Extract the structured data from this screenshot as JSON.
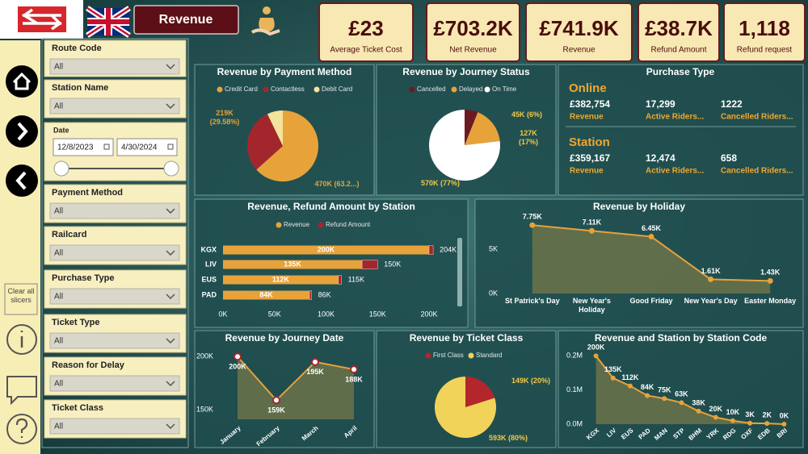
{
  "header": {
    "page_button": "Revenue"
  },
  "kpis": [
    {
      "value": "£23",
      "label": "Average Ticket Cost"
    },
    {
      "value": "£703.2K",
      "label": "Net Revenue"
    },
    {
      "value": "£741.9K",
      "label": "Revenue"
    },
    {
      "value": "£38.7K",
      "label": "Refund Amount"
    },
    {
      "value": "1,118",
      "label": "Refund request"
    }
  ],
  "sidebar": {
    "clear_button": "Clear all slicers"
  },
  "slicers": [
    {
      "label": "Route Code",
      "value": "All"
    },
    {
      "label": "Station Name",
      "value": "All"
    },
    {
      "label": "Date",
      "start": "12/8/2023",
      "end": "4/30/2024"
    },
    {
      "label": "Payment Method",
      "value": "All"
    },
    {
      "label": "Railcard",
      "value": "All"
    },
    {
      "label": "Purchase Type",
      "value": "All"
    },
    {
      "label": "Ticket Type",
      "value": "All"
    },
    {
      "label": "Reason for Delay",
      "value": "All"
    },
    {
      "label": "Ticket Class",
      "value": "All"
    }
  ],
  "purchase_type": {
    "title": "Purchase Type",
    "groups": [
      {
        "name": "Online",
        "stats": [
          {
            "value": "£382,754",
            "label": "Revenue"
          },
          {
            "value": "17,299",
            "label": "Active Riders..."
          },
          {
            "value": "1222",
            "label": "Cancelled Riders..."
          }
        ]
      },
      {
        "name": "Station",
        "stats": [
          {
            "value": "£359,167",
            "label": "Revenue"
          },
          {
            "value": "12,474",
            "label": "Active Riders..."
          },
          {
            "value": "658",
            "label": "Cancelled Riders..."
          }
        ]
      }
    ]
  },
  "chart_data": [
    {
      "type": "pie",
      "title": "Revenue by Payment Method",
      "categories": [
        "Credit Card",
        "Contactless",
        "Debit Card"
      ],
      "values": [
        470000,
        219000,
        53000
      ],
      "value_labels": [
        "470K (63.2...)",
        "219K (29.58%)",
        null
      ],
      "colors": [
        "#e8a23a",
        "#a3262d",
        "#f3e39c"
      ],
      "legend": "top"
    },
    {
      "type": "pie",
      "title": "Revenue by Journey Status",
      "categories": [
        "Cancelled",
        "Delayed",
        "On Time"
      ],
      "values": [
        45000,
        127000,
        570000
      ],
      "value_labels": [
        "45K (6%)",
        "127K (17%)",
        "570K (77%)"
      ],
      "colors": [
        "#6b1a22",
        "#e8a23a",
        "#ffffff"
      ],
      "legend": "top"
    },
    {
      "type": "bar",
      "orientation": "horizontal",
      "stacked": true,
      "title": "Revenue, Refund Amount by Station",
      "categories": [
        "KGX",
        "LIV",
        "EUS",
        "PAD"
      ],
      "series": [
        {
          "name": "Revenue",
          "color": "#e8a23a",
          "values": [
            200000,
            135000,
            112000,
            84000
          ],
          "value_labels": [
            "200K",
            "135K",
            "112K",
            "84K"
          ]
        },
        {
          "name": "Refund Amount",
          "color": "#a3262d",
          "values": [
            4000,
            15000,
            3000,
            2000
          ]
        }
      ],
      "totals": {
        "values": [
          204000,
          150000,
          115000,
          86000
        ],
        "value_labels": [
          "204K",
          "150K",
          "115K",
          "86K"
        ]
      },
      "xlim": [
        0,
        200000
      ],
      "xticks": [
        {
          "value": 0,
          "label": "0K"
        },
        {
          "value": 50000,
          "label": "50K"
        },
        {
          "value": 100000,
          "label": "100K"
        },
        {
          "value": 150000,
          "label": "150K"
        },
        {
          "value": 200000,
          "label": "200K"
        }
      ],
      "legend": "top"
    },
    {
      "type": "area",
      "title": "Revenue by Holiday",
      "categories": [
        "St Patrick's Day",
        "New Year's Holiday",
        "Good Friday",
        "New Year's Day",
        "Easter Monday"
      ],
      "values": [
        7750,
        7110,
        6450,
        1610,
        1430
      ],
      "value_labels": [
        "7.75K",
        "7.11K",
        "6.45K",
        "1.61K",
        "1.43K"
      ],
      "color": "#e8a23a",
      "ylim": [
        0,
        8500
      ],
      "yticks": [
        {
          "value": 0,
          "label": "0K"
        },
        {
          "value": 5000,
          "label": "5K"
        }
      ]
    },
    {
      "type": "area",
      "title": "Revenue by Journey Date",
      "categories": [
        "January",
        "February",
        "March",
        "April"
      ],
      "values": [
        200000,
        159000,
        195000,
        188000
      ],
      "value_labels": [
        "200K",
        "159K",
        "195K",
        "188K"
      ],
      "color": "#e8a23a",
      "ylim": [
        141000,
        204000
      ],
      "yticks": [
        {
          "value": 150000,
          "label": "150K"
        },
        {
          "value": 200000,
          "label": "200K"
        }
      ]
    },
    {
      "type": "pie",
      "title": "Revenue by Ticket Class",
      "categories": [
        "First Class",
        "Standard"
      ],
      "values": [
        149000,
        593000
      ],
      "value_labels": [
        "149K (20%)",
        "593K (80%)"
      ],
      "colors": [
        "#b3262c",
        "#f2d35a"
      ],
      "legend": "top"
    },
    {
      "type": "area",
      "title": "Revenue and Station by Station Code",
      "categories": [
        "KGX",
        "LIV",
        "EUS",
        "PAD",
        "MAN",
        "STP",
        "BHM",
        "YRK",
        "RDG",
        "OXF",
        "EDB",
        "BRI"
      ],
      "values": [
        200000,
        135000,
        112000,
        84000,
        75000,
        63000,
        38000,
        20000,
        10000,
        3000,
        2000,
        0
      ],
      "value_labels": [
        "200K",
        "135K",
        "112K",
        "84K",
        "75K",
        "63K",
        "38K",
        "20K",
        "10K",
        "3K",
        "2K",
        "0K"
      ],
      "color": "#e8a23a",
      "ylim": [
        0,
        215000
      ],
      "yticks": [
        {
          "value": 0,
          "label": "0.0M"
        },
        {
          "value": 100000,
          "label": "0.1M"
        },
        {
          "value": 200000,
          "label": "0.2M"
        }
      ]
    }
  ]
}
